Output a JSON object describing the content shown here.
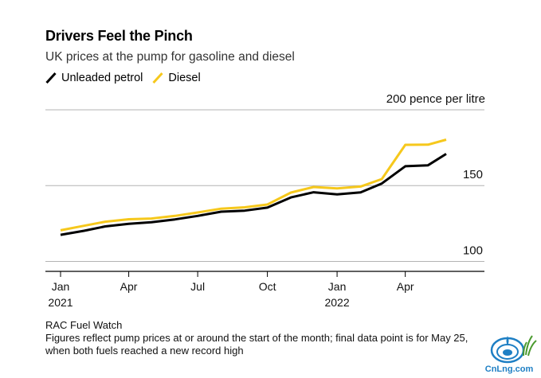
{
  "title": "Drivers Feel the Pinch",
  "subtitle": "UK prices at the pump for gasoline and diesel",
  "colors": {
    "petrol": "#000000",
    "diesel": "#F6C81C",
    "grid": "#b3b3b3",
    "axis": "#000000"
  },
  "footer": {
    "source": "RAC Fuel Watch",
    "note": "Figures reflect pump prices at or around the start of the month; final data point is for May 25, when both fuels reached a new record high"
  },
  "logo": {
    "text": "CnLng.com"
  },
  "chart_data": {
    "type": "line",
    "title": "Drivers Feel the Pinch",
    "subtitle": "UK prices at the pump for gasoline and diesel",
    "ylabel": "200 pence per litre",
    "ylim": [
      95,
      200
    ],
    "yticks": [
      {
        "value": 100,
        "label": "100"
      },
      {
        "value": 150,
        "label": "150"
      },
      {
        "value": 200,
        "label": "200 pence per litre"
      }
    ],
    "xticks": [
      {
        "date": "2021-01-01",
        "label": "Jan",
        "sublabel": "2021"
      },
      {
        "date": "2021-04-01",
        "label": "Apr",
        "sublabel": ""
      },
      {
        "date": "2021-07-01",
        "label": "Jul",
        "sublabel": ""
      },
      {
        "date": "2021-10-01",
        "label": "Oct",
        "sublabel": ""
      },
      {
        "date": "2022-01-01",
        "label": "Jan",
        "sublabel": "2022"
      },
      {
        "date": "2022-04-01",
        "label": "Apr",
        "sublabel": ""
      }
    ],
    "x": [
      "2021-01-01",
      "2021-02-01",
      "2021-03-01",
      "2021-04-01",
      "2021-05-01",
      "2021-06-01",
      "2021-07-01",
      "2021-08-01",
      "2021-09-01",
      "2021-10-01",
      "2021-11-01",
      "2021-12-01",
      "2022-01-01",
      "2022-02-01",
      "2022-03-01",
      "2022-04-01",
      "2022-05-01",
      "2022-05-25"
    ],
    "series": [
      {
        "name": "Unleaded petrol",
        "color": "#000000",
        "values": [
          117.5,
          120.2,
          123.1,
          124.8,
          125.8,
          127.7,
          130.0,
          132.8,
          133.5,
          135.5,
          142.2,
          145.6,
          144.2,
          145.5,
          151.4,
          162.8,
          163.4,
          170.9
        ]
      },
      {
        "name": "Diesel",
        "color": "#F6C81C",
        "values": [
          120.5,
          123.5,
          126.2,
          127.8,
          128.3,
          130.0,
          132.3,
          134.8,
          135.7,
          137.5,
          145.4,
          149.1,
          148.2,
          149.4,
          154.3,
          176.9,
          177.0,
          180.3
        ]
      }
    ]
  }
}
